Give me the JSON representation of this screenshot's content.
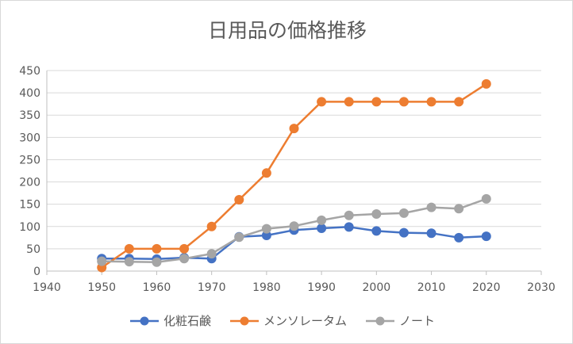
{
  "chart_data": {
    "type": "scatter",
    "title": "日用品の価格推移",
    "xlabel": "",
    "ylabel": "",
    "xlim": [
      1940,
      2030
    ],
    "ylim": [
      0,
      450
    ],
    "x_ticks": [
      1940,
      1950,
      1960,
      1970,
      1980,
      1990,
      2000,
      2010,
      2020,
      2030
    ],
    "y_ticks": [
      0,
      50,
      100,
      150,
      200,
      250,
      300,
      350,
      400,
      450
    ],
    "grid": "horizontal",
    "legend_position": "bottom",
    "markers": "circle",
    "series": [
      {
        "name": "化粧石鹸",
        "color": "#4472c4",
        "x": [
          1950,
          1955,
          1960,
          1965,
          1970,
          1975,
          1980,
          1985,
          1990,
          1995,
          2000,
          2005,
          2010,
          2015,
          2020
        ],
        "y": [
          28,
          28,
          27,
          30,
          28,
          77,
          80,
          92,
          96,
          99,
          90,
          86,
          85,
          75,
          78
        ]
      },
      {
        "name": "メンソレータム",
        "color": "#ed7d31",
        "x": [
          1950,
          1955,
          1960,
          1965,
          1970,
          1975,
          1980,
          1985,
          1990,
          1995,
          2000,
          2005,
          2010,
          2015,
          2020
        ],
        "y": [
          8,
          50,
          50,
          50,
          100,
          160,
          220,
          320,
          380,
          380,
          380,
          380,
          380,
          380,
          420
        ]
      },
      {
        "name": "ノート",
        "color": "#a5a5a5",
        "x": [
          1950,
          1955,
          1960,
          1965,
          1970,
          1975,
          1980,
          1985,
          1990,
          1995,
          2000,
          2005,
          2010,
          2015,
          2020
        ],
        "y": [
          22,
          21,
          20,
          28,
          39,
          76,
          95,
          101,
          114,
          125,
          128,
          130,
          143,
          140,
          162
        ]
      }
    ]
  }
}
